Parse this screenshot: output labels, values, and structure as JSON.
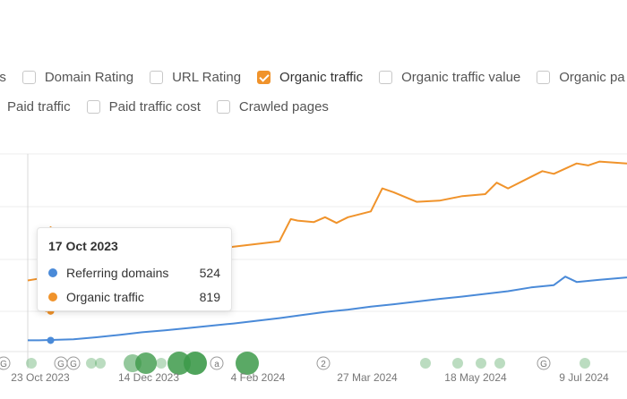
{
  "metrics_row1": [
    {
      "label": "ns",
      "checked": null
    },
    {
      "label": "Domain Rating",
      "checked": false
    },
    {
      "label": "URL Rating",
      "checked": false
    },
    {
      "label": "Organic traffic",
      "checked": true
    },
    {
      "label": "Organic traffic value",
      "checked": false
    },
    {
      "label": "Organic pa",
      "checked": false
    }
  ],
  "metrics_row2": [
    {
      "label": "Paid traffic",
      "checked": null
    },
    {
      "label": "Paid traffic cost",
      "checked": false
    },
    {
      "label": "Crawled pages",
      "checked": false
    }
  ],
  "colors": {
    "referring_domains": "#4a8ad8",
    "organic_traffic": "#f0932b",
    "annotation_green": "#4caf50"
  },
  "tooltip": {
    "date": "17 Oct 2023",
    "rows": [
      {
        "name": "Referring domains",
        "value": "524",
        "color": "#4a8ad8"
      },
      {
        "name": "Organic traffic",
        "value": "819",
        "color": "#f0932b"
      }
    ]
  },
  "chart_data": {
    "type": "line",
    "x_tick_labels": [
      "23 Oct 2023",
      "14 Dec 2023",
      "4 Feb 2024",
      "27 Mar 2024",
      "18 May 2024",
      "9 Jul 2024"
    ],
    "series": [
      {
        "name": "Referring domains",
        "color": "#4a8ad8",
        "points": [
          [
            0,
            524
          ],
          [
            5,
            524
          ],
          [
            10,
            525
          ],
          [
            20,
            527
          ],
          [
            30,
            532
          ],
          [
            40,
            538
          ],
          [
            50,
            545
          ],
          [
            60,
            550
          ],
          [
            70,
            556
          ],
          [
            80,
            562
          ],
          [
            90,
            568
          ],
          [
            100,
            575
          ],
          [
            110,
            582
          ],
          [
            120,
            590
          ],
          [
            130,
            598
          ],
          [
            140,
            604
          ],
          [
            150,
            612
          ],
          [
            160,
            618
          ],
          [
            170,
            625
          ],
          [
            180,
            632
          ],
          [
            190,
            638
          ],
          [
            200,
            645
          ],
          [
            210,
            652
          ],
          [
            220,
            662
          ],
          [
            230,
            668
          ],
          [
            235,
            690
          ],
          [
            240,
            676
          ],
          [
            250,
            682
          ],
          [
            262,
            688
          ]
        ]
      },
      {
        "name": "Organic traffic",
        "color": "#f0932b",
        "points": [
          [
            0,
            680
          ],
          [
            4,
            684
          ],
          [
            6,
            685
          ],
          [
            7,
            610
          ],
          [
            8,
            600
          ],
          [
            9,
            660
          ],
          [
            10,
            819
          ],
          [
            12,
            790
          ],
          [
            15,
            740
          ],
          [
            20,
            725
          ],
          [
            30,
            730
          ],
          [
            40,
            730
          ],
          [
            50,
            738
          ],
          [
            60,
            745
          ],
          [
            70,
            752
          ],
          [
            80,
            760
          ],
          [
            90,
            768
          ],
          [
            100,
            775
          ],
          [
            110,
            782
          ],
          [
            115,
            840
          ],
          [
            118,
            836
          ],
          [
            125,
            832
          ],
          [
            130,
            845
          ],
          [
            135,
            830
          ],
          [
            140,
            845
          ],
          [
            150,
            860
          ],
          [
            155,
            920
          ],
          [
            160,
            910
          ],
          [
            170,
            885
          ],
          [
            180,
            888
          ],
          [
            190,
            900
          ],
          [
            200,
            905
          ],
          [
            205,
            935
          ],
          [
            210,
            920
          ],
          [
            220,
            950
          ],
          [
            225,
            965
          ],
          [
            230,
            958
          ],
          [
            240,
            985
          ],
          [
            245,
            980
          ],
          [
            250,
            990
          ],
          [
            262,
            985
          ]
        ]
      }
    ],
    "annotations": [
      {
        "label": "G",
        "kind": "google-update"
      },
      {
        "label": "G",
        "kind": "google-update"
      },
      {
        "label": "a",
        "kind": "note"
      },
      {
        "label": "2",
        "kind": "grouped"
      },
      {
        "label": "G",
        "kind": "google-update"
      }
    ]
  }
}
